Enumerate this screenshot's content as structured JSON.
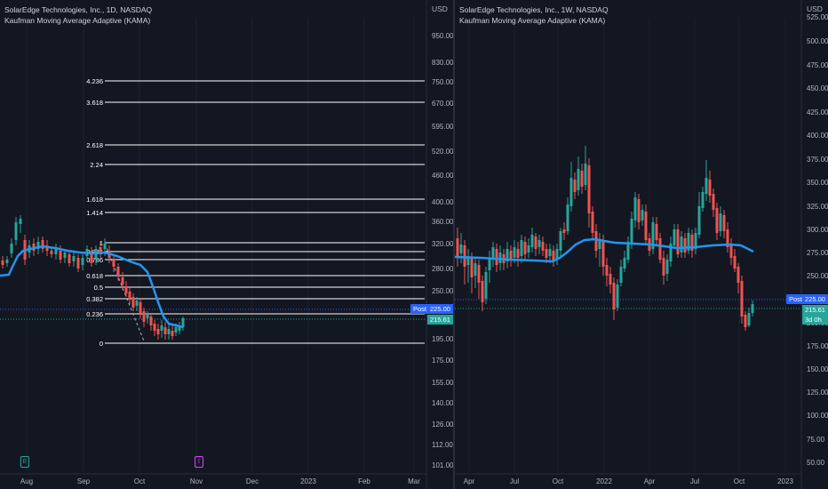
{
  "left": {
    "title": "SolarEdge Technologies, Inc., 1D, NASDAQ",
    "indicator": "Kaufman Moving Average Adaptive (KAMA)",
    "currency": "USD",
    "price_ticks": [
      "950.00",
      "830.00",
      "750.00",
      "670.00",
      "595.00",
      "520.00",
      "460.00",
      "400.00",
      "360.00",
      "320.00",
      "280.00",
      "250.00",
      "225.00",
      "195.00",
      "175.00",
      "155.00",
      "140.00",
      "126.00",
      "112.00",
      "101.00"
    ],
    "time_ticks": [
      "Aug",
      "Sep",
      "Oct",
      "Nov",
      "Dec",
      "2023",
      "Feb",
      "Mar"
    ],
    "fib_levels": [
      "4.236",
      "3.618",
      "2.618",
      "2.24",
      "1.618",
      "1.414",
      "1",
      "0.886",
      "0.786",
      "0.618",
      "0.5",
      "0.382",
      "0.236",
      "0"
    ],
    "post_label": "Post",
    "post_price": "225.00",
    "last_price": "215.61",
    "marker_earnings": "E",
    "marker_dividend": "I"
  },
  "right": {
    "title": "SolarEdge Technologies, Inc., 1W, NASDAQ",
    "indicator": "Kaufman Moving Average Adaptive (KAMA)",
    "currency": "USD",
    "price_ticks": [
      "525.00",
      "500.00",
      "475.00",
      "450.00",
      "425.00",
      "400.00",
      "375.00",
      "350.00",
      "325.00",
      "300.00",
      "275.00",
      "250.00",
      "225.00",
      "200.00",
      "175.00",
      "150.00",
      "125.00",
      "100.00",
      "75.00",
      "50.00"
    ],
    "time_ticks": [
      "Apr",
      "Jul",
      "Oct",
      "2022",
      "Apr",
      "Jul",
      "Oct",
      "2023"
    ],
    "post_label": "Post",
    "post_price": "225.00",
    "last_price": "215.61",
    "countdown": "3d 0h"
  },
  "colors": {
    "bg": "#131722",
    "up": "#26a69a",
    "down": "#ef5350",
    "kama": "#2196f3",
    "fib": "#ffffff",
    "post": "#2962ff",
    "grid": "#1e222d",
    "axis_text": "#b2b5be"
  }
}
